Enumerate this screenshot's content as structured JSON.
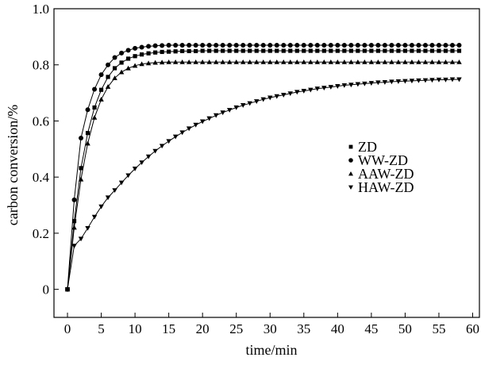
{
  "chart_data": {
    "type": "line",
    "title": "",
    "xlabel": "time/min",
    "ylabel": "carbon conversion/%",
    "xlim": [
      -2,
      61
    ],
    "ylim": [
      -0.1,
      1.0
    ],
    "xticks": [
      0,
      5,
      10,
      15,
      20,
      25,
      30,
      35,
      40,
      45,
      50,
      55,
      60
    ],
    "yticks": [
      0,
      0.2,
      0.4,
      0.6,
      0.8,
      1.0
    ],
    "xtick_labels": [
      "0",
      "5",
      "10",
      "15",
      "20",
      "25",
      "30",
      "35",
      "40",
      "45",
      "50",
      "55",
      "60"
    ],
    "ytick_labels": [
      "0",
      "0.2",
      "0.4",
      "0.6",
      "0.8",
      "1.0"
    ],
    "grid": false,
    "legend_position": "right-middle",
    "series": [
      {
        "name": "ZD",
        "marker": "square",
        "x": [
          0,
          1,
          2,
          3,
          4,
          5,
          6,
          7,
          8,
          9,
          10,
          11,
          12,
          13,
          14,
          15,
          16,
          17,
          18,
          19,
          20,
          21,
          22,
          23,
          24,
          25,
          26,
          27,
          28,
          29,
          30,
          31,
          32,
          33,
          34,
          35,
          36,
          37,
          38,
          39,
          40,
          41,
          42,
          43,
          44,
          45,
          46,
          47,
          48,
          49,
          50,
          51,
          52,
          53,
          54,
          55,
          56,
          57,
          58
        ],
        "y": [
          0,
          0.243,
          0.432,
          0.557,
          0.648,
          0.711,
          0.757,
          0.788,
          0.808,
          0.822,
          0.831,
          0.837,
          0.841,
          0.844,
          0.846,
          0.847,
          0.848,
          0.849,
          0.849,
          0.849,
          0.85,
          0.85,
          0.85,
          0.85,
          0.85,
          0.85,
          0.85,
          0.85,
          0.85,
          0.85,
          0.85,
          0.85,
          0.85,
          0.85,
          0.85,
          0.85,
          0.85,
          0.85,
          0.85,
          0.85,
          0.85,
          0.85,
          0.85,
          0.85,
          0.85,
          0.85,
          0.85,
          0.85,
          0.85,
          0.85,
          0.85,
          0.85,
          0.85,
          0.85,
          0.85,
          0.85,
          0.85,
          0.85,
          0.85
        ]
      },
      {
        "name": "WW-ZD",
        "marker": "circle",
        "x": [
          0,
          1,
          2,
          3,
          4,
          5,
          6,
          7,
          8,
          9,
          10,
          11,
          12,
          13,
          14,
          15,
          16,
          17,
          18,
          19,
          20,
          21,
          22,
          23,
          24,
          25,
          26,
          27,
          28,
          29,
          30,
          31,
          32,
          33,
          34,
          35,
          36,
          37,
          38,
          39,
          40,
          41,
          42,
          43,
          44,
          45,
          46,
          47,
          48,
          49,
          50,
          51,
          52,
          53,
          54,
          55,
          56,
          57,
          58
        ],
        "y": [
          0,
          0.319,
          0.539,
          0.64,
          0.713,
          0.765,
          0.8,
          0.826,
          0.842,
          0.852,
          0.859,
          0.863,
          0.866,
          0.868,
          0.869,
          0.87,
          0.87,
          0.87,
          0.87,
          0.87,
          0.87,
          0.87,
          0.87,
          0.87,
          0.87,
          0.87,
          0.87,
          0.87,
          0.87,
          0.87,
          0.87,
          0.87,
          0.87,
          0.87,
          0.87,
          0.87,
          0.87,
          0.87,
          0.87,
          0.87,
          0.87,
          0.87,
          0.87,
          0.87,
          0.87,
          0.87,
          0.87,
          0.87,
          0.87,
          0.87,
          0.87,
          0.87,
          0.87,
          0.87,
          0.87,
          0.87,
          0.87,
          0.87,
          0.87
        ]
      },
      {
        "name": "AAW-ZD",
        "marker": "triangle-up",
        "x": [
          0,
          1,
          2,
          3,
          4,
          5,
          6,
          7,
          8,
          9,
          10,
          11,
          12,
          13,
          14,
          15,
          16,
          17,
          18,
          19,
          20,
          21,
          22,
          23,
          24,
          25,
          26,
          27,
          28,
          29,
          30,
          31,
          32,
          33,
          34,
          35,
          36,
          37,
          38,
          39,
          40,
          41,
          42,
          43,
          44,
          45,
          46,
          47,
          48,
          49,
          50,
          51,
          52,
          53,
          54,
          55,
          56,
          57,
          58
        ],
        "y": [
          0,
          0.22,
          0.392,
          0.52,
          0.612,
          0.677,
          0.722,
          0.753,
          0.774,
          0.788,
          0.797,
          0.803,
          0.806,
          0.808,
          0.809,
          0.81,
          0.81,
          0.81,
          0.81,
          0.81,
          0.81,
          0.81,
          0.81,
          0.81,
          0.81,
          0.81,
          0.81,
          0.81,
          0.81,
          0.81,
          0.81,
          0.81,
          0.81,
          0.81,
          0.81,
          0.81,
          0.81,
          0.81,
          0.81,
          0.81,
          0.81,
          0.81,
          0.81,
          0.81,
          0.81,
          0.81,
          0.81,
          0.81,
          0.81,
          0.81,
          0.81,
          0.81,
          0.81,
          0.81,
          0.81,
          0.81,
          0.81,
          0.81,
          0.81
        ]
      },
      {
        "name": "HAW-ZD",
        "marker": "triangle-down",
        "x": [
          0,
          1,
          2,
          3,
          4,
          5,
          6,
          7,
          8,
          9,
          10,
          11,
          12,
          13,
          14,
          15,
          16,
          17,
          18,
          19,
          20,
          21,
          22,
          23,
          24,
          25,
          26,
          27,
          28,
          29,
          30,
          31,
          32,
          33,
          34,
          35,
          36,
          37,
          38,
          39,
          40,
          41,
          42,
          43,
          44,
          45,
          46,
          47,
          48,
          49,
          50,
          51,
          52,
          53,
          54,
          55,
          56,
          57,
          58
        ],
        "y": [
          0,
          0.155,
          0.18,
          0.218,
          0.258,
          0.295,
          0.327,
          0.353,
          0.38,
          0.406,
          0.43,
          0.452,
          0.473,
          0.493,
          0.511,
          0.528,
          0.544,
          0.559,
          0.573,
          0.586,
          0.598,
          0.609,
          0.62,
          0.63,
          0.639,
          0.648,
          0.656,
          0.663,
          0.67,
          0.677,
          0.683,
          0.688,
          0.693,
          0.698,
          0.703,
          0.707,
          0.711,
          0.715,
          0.718,
          0.721,
          0.724,
          0.727,
          0.729,
          0.731,
          0.733,
          0.735,
          0.737,
          0.738,
          0.74,
          0.741,
          0.742,
          0.743,
          0.744,
          0.745,
          0.746,
          0.747,
          0.747,
          0.748,
          0.748
        ]
      }
    ]
  }
}
